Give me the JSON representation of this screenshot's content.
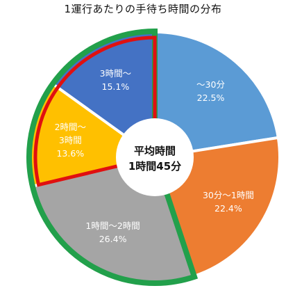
{
  "chart_data": {
    "type": "pie",
    "title": "1運行あたりの手待ち時間の分布",
    "center_label": [
      "平均時間",
      "1時間45分"
    ],
    "slices": [
      {
        "label": "～30分",
        "value": 22.5,
        "value_text": "22.5%",
        "color": "#5B9BD5"
      },
      {
        "label": "30分～1時間",
        "value": 22.4,
        "value_text": "22.4%",
        "color": "#ED7D31"
      },
      {
        "label": "1時間～2時間",
        "value": 26.4,
        "value_text": "26.4%",
        "color": "#A5A5A5"
      },
      {
        "label": "2時間～",
        "label_line2": "3時間",
        "value": 13.6,
        "value_text": "13.6%",
        "color": "#FFC000"
      },
      {
        "label": "3時間～",
        "value": 15.1,
        "value_text": "15.1%",
        "color": "#4472C4"
      }
    ],
    "highlight_outline_colors": {
      "green": "#22A04B",
      "red": "#E01010"
    }
  }
}
